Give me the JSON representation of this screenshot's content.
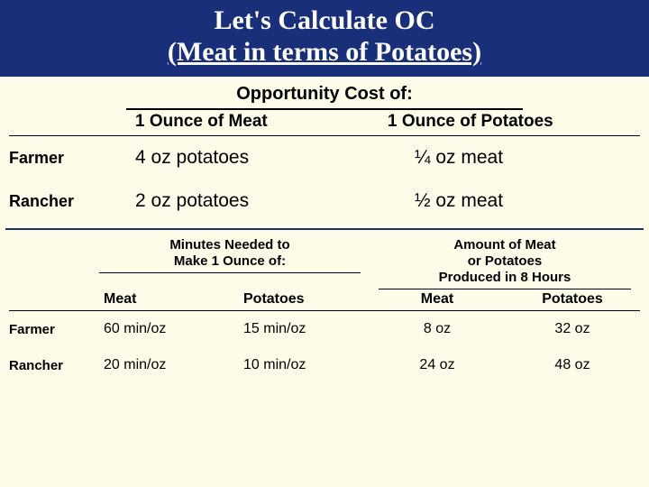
{
  "title_line1": "Let's Calculate OC",
  "title_line2": "(Meat in terms of Potatoes)",
  "colors": {
    "banner_bg": "#1a2f7a",
    "banner_text": "#ffffff",
    "page_bg": "#fdfce9",
    "rule": "#000000"
  },
  "table1": {
    "header": "Opportunity Cost of:",
    "col1": "1 Ounce of Meat",
    "col2": "1 Ounce of Potatoes",
    "rows": [
      {
        "label": "Farmer",
        "meat": "4 oz potatoes",
        "potatoes": "¼ oz meat"
      },
      {
        "label": "Rancher",
        "meat": "2 oz potatoes",
        "potatoes": "½ oz meat"
      }
    ]
  },
  "table2": {
    "group1": "Minutes Needed to\nMake 1 Ounce of:",
    "group2": "Amount of Meat\nor Potatoes\nProduced in 8 Hours",
    "sub": {
      "c1": "Meat",
      "c2": "Potatoes",
      "c3": "Meat",
      "c4": "Potatoes"
    },
    "rows": [
      {
        "label": "Farmer",
        "c1": "60 min/oz",
        "c2": "15 min/oz",
        "c3": "8 oz",
        "c4": "32 oz"
      },
      {
        "label": "Rancher",
        "c1": "20 min/oz",
        "c2": "10 min/oz",
        "c3": "24 oz",
        "c4": "48 oz"
      }
    ]
  }
}
